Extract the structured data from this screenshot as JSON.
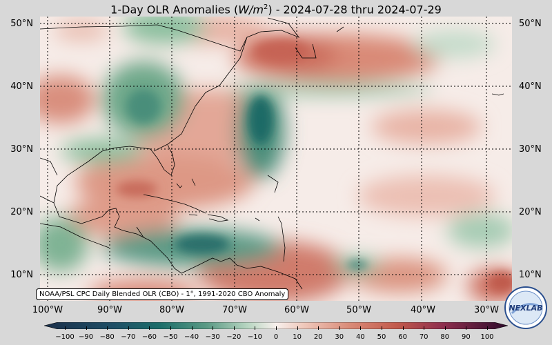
{
  "title_prefix": "1-Day OLR Anomalies (",
  "title_units_var": "W/m",
  "title_units_exp": "2",
  "title_suffix": ") - 2024-07-28 thru 2024-07-29",
  "lat_labels": [
    "50°N",
    "40°N",
    "30°N",
    "20°N",
    "10°N"
  ],
  "lon_labels": [
    "100°W",
    "90°W",
    "80°W",
    "70°W",
    "60°W",
    "50°W",
    "40°W",
    "30°W"
  ],
  "source_label": "NOAA/PSL CPC Daily Blended OLR (CBO) - 1°, 1991-2020 CBO Anomaly",
  "colorbar_ticks": [
    "−100",
    "−90",
    "−80",
    "−70",
    "−60",
    "−50",
    "−40",
    "−30",
    "−20",
    "−10",
    "0",
    "10",
    "20",
    "30",
    "40",
    "50",
    "60",
    "70",
    "80",
    "90",
    "100"
  ],
  "logo_text": "NEXLAB",
  "colors": {
    "negative_dark": "#1f3b5a",
    "negative_teal": "#1c6e6a",
    "negative_green": "#7fb394",
    "neutral": "#f7efec",
    "positive_salmon": "#e0a08c",
    "positive_red": "#c25a4c",
    "positive_purple": "#6b1d56",
    "positive_dark": "#3a0f33"
  }
}
